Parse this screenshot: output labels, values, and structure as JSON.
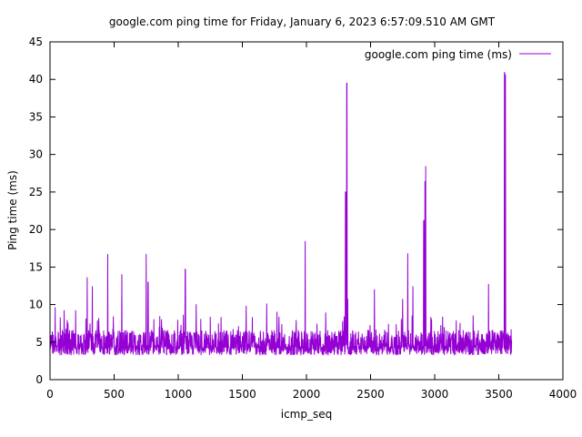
{
  "chart_data": {
    "type": "line",
    "title": "google.com ping time for Friday, January 6, 2023 6:57:09.510 AM GMT",
    "xlabel": "icmp_seq",
    "ylabel": "Ping time (ms)",
    "xlim": [
      0,
      4000
    ],
    "ylim": [
      0,
      45
    ],
    "x_ticks": [
      "0",
      "500",
      "1000",
      "1500",
      "2000",
      "2500",
      "3000",
      "3500",
      "4000"
    ],
    "y_ticks": [
      "0",
      "5",
      "10",
      "15",
      "20",
      "25",
      "30",
      "35",
      "40",
      "45"
    ],
    "grid": false,
    "legend_position": "top-right",
    "series": [
      {
        "name": "google.com ping time (ms)",
        "color": "#9400d3",
        "x_range": [
          0,
          3600
        ],
        "baseline_range": [
          3,
          6
        ],
        "spikes": [
          {
            "x": 40,
            "y": 9.6
          },
          {
            "x": 110,
            "y": 9.2
          },
          {
            "x": 200,
            "y": 9.2
          },
          {
            "x": 290,
            "y": 13.6
          },
          {
            "x": 330,
            "y": 12.4
          },
          {
            "x": 450,
            "y": 16.7
          },
          {
            "x": 560,
            "y": 14.0
          },
          {
            "x": 750,
            "y": 16.7
          },
          {
            "x": 765,
            "y": 13.0
          },
          {
            "x": 810,
            "y": 8.0
          },
          {
            "x": 870,
            "y": 8.0
          },
          {
            "x": 1040,
            "y": 8.6
          },
          {
            "x": 1055,
            "y": 14.7
          },
          {
            "x": 1140,
            "y": 10.0
          },
          {
            "x": 1530,
            "y": 9.8
          },
          {
            "x": 1690,
            "y": 10.1
          },
          {
            "x": 1770,
            "y": 9.0
          },
          {
            "x": 1990,
            "y": 18.4
          },
          {
            "x": 2150,
            "y": 8.9
          },
          {
            "x": 2305,
            "y": 25.0
          },
          {
            "x": 2315,
            "y": 39.5
          },
          {
            "x": 2322,
            "y": 10.7
          },
          {
            "x": 2530,
            "y": 12.0
          },
          {
            "x": 2750,
            "y": 10.7
          },
          {
            "x": 2790,
            "y": 16.8
          },
          {
            "x": 2830,
            "y": 12.4
          },
          {
            "x": 2915,
            "y": 21.2
          },
          {
            "x": 2925,
            "y": 26.4
          },
          {
            "x": 2930,
            "y": 28.4
          },
          {
            "x": 3300,
            "y": 8.5
          },
          {
            "x": 3420,
            "y": 12.7
          },
          {
            "x": 3545,
            "y": 40.9
          },
          {
            "x": 3552,
            "y": 40.6
          }
        ]
      }
    ]
  }
}
